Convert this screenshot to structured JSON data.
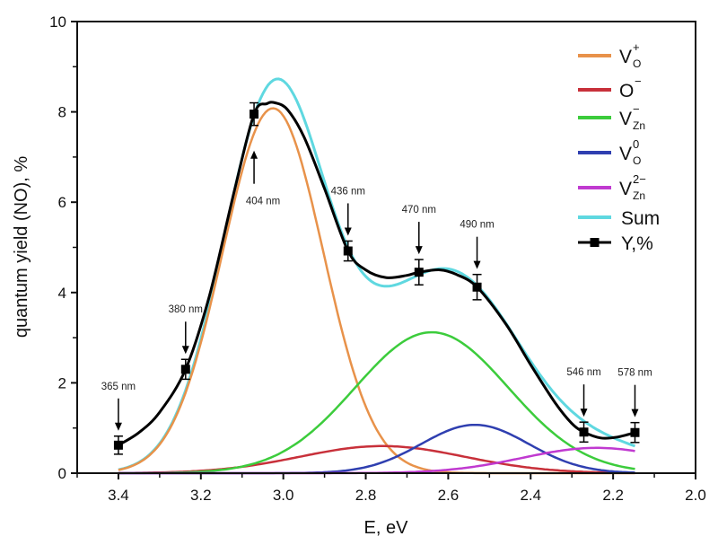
{
  "chart_data": {
    "type": "line",
    "title": "",
    "xlabel": "E,  eV",
    "ylabel": "quantum  yield (NO), %",
    "xlim": [
      3.5,
      2.0
    ],
    "ylim": [
      0,
      10
    ],
    "x_reversed": true,
    "grid": false,
    "x_ticks": [
      3.4,
      3.2,
      3.0,
      2.8,
      2.6,
      2.4,
      2.2,
      2.0
    ],
    "x_tick_labels": [
      "3.4",
      "3.2",
      "3.0",
      "2.8",
      "2.6",
      "2.4",
      "2.2",
      "2.0"
    ],
    "x_minor_ticks": [
      3.5,
      3.3,
      3.1,
      2.9,
      2.7,
      2.5,
      2.3,
      2.1
    ],
    "y_ticks": [
      0,
      2,
      4,
      6,
      8,
      10
    ],
    "y_tick_labels": [
      "0",
      "2",
      "4",
      "6",
      "8",
      "10"
    ],
    "y_minor_ticks": [
      1,
      3,
      5,
      7,
      9
    ],
    "legend_position": "top-right",
    "x_range_curves": [
      3.4,
      2.147
    ],
    "components": [
      {
        "name": "V_O^+",
        "base": "V",
        "sub": "O",
        "sup": "+",
        "color": "#e8924a",
        "amplitude": 8.08,
        "center": 3.025,
        "sigma": 0.122
      },
      {
        "name": "O^-",
        "base": "O",
        "sub": "",
        "sup": "−",
        "color": "#c8303a",
        "amplitude": 0.6,
        "center": 2.76,
        "sigma": 0.2
      },
      {
        "name": "V_Zn^-",
        "base": "V",
        "sub": "Zn",
        "sup": "−",
        "color": "#3ccc3c",
        "amplitude": 3.12,
        "center": 2.64,
        "sigma": 0.186
      },
      {
        "name": "V_O^0",
        "base": "V",
        "sub": "O",
        "sup": "0",
        "color": "#2f3fb0",
        "amplitude": 1.07,
        "center": 2.535,
        "sigma": 0.13
      },
      {
        "name": "V_Zn^2-",
        "base": "V",
        "sub": "Zn",
        "sup": "2−",
        "color": "#c03ad0",
        "amplitude": 0.56,
        "center": 2.24,
        "sigma": 0.18
      }
    ],
    "sum_series": {
      "name": "Sum",
      "color": "#5fd8e0"
    },
    "measured_series": {
      "name": "Y,%",
      "color": "#000000",
      "points": [
        {
          "x": 3.4,
          "y": 0.62,
          "err": 0.2,
          "label": "365 nm"
        },
        {
          "x": 3.237,
          "y": 2.3,
          "err": 0.22,
          "label": "380 nm"
        },
        {
          "x": 3.071,
          "y": 7.95,
          "err": 0.25,
          "label": "404 nm"
        },
        {
          "x": 2.843,
          "y": 4.92,
          "err": 0.22,
          "label": "436 nm"
        },
        {
          "x": 2.671,
          "y": 4.45,
          "err": 0.28,
          "label": "470 nm"
        },
        {
          "x": 2.53,
          "y": 4.12,
          "err": 0.28,
          "label": "490 nm"
        },
        {
          "x": 2.271,
          "y": 0.91,
          "err": 0.22,
          "label": "546 nm"
        },
        {
          "x": 2.147,
          "y": 0.9,
          "err": 0.22,
          "label": "578 nm"
        }
      ],
      "curve": [
        [
          3.4,
          0.62
        ],
        [
          3.35,
          0.9
        ],
        [
          3.3,
          1.35
        ],
        [
          3.237,
          2.3
        ],
        [
          3.18,
          3.9
        ],
        [
          3.12,
          6.2
        ],
        [
          3.071,
          7.95
        ],
        [
          3.04,
          8.18
        ],
        [
          3.02,
          8.2
        ],
        [
          2.99,
          8.05
        ],
        [
          2.95,
          7.45
        ],
        [
          2.9,
          6.3
        ],
        [
          2.843,
          4.92
        ],
        [
          2.8,
          4.5
        ],
        [
          2.75,
          4.33
        ],
        [
          2.7,
          4.38
        ],
        [
          2.671,
          4.45
        ],
        [
          2.62,
          4.5
        ],
        [
          2.58,
          4.4
        ],
        [
          2.53,
          4.12
        ],
        [
          2.46,
          3.3
        ],
        [
          2.4,
          2.4
        ],
        [
          2.34,
          1.55
        ],
        [
          2.3,
          1.1
        ],
        [
          2.271,
          0.91
        ],
        [
          2.23,
          0.78
        ],
        [
          2.19,
          0.8
        ],
        [
          2.147,
          0.9
        ]
      ]
    }
  }
}
